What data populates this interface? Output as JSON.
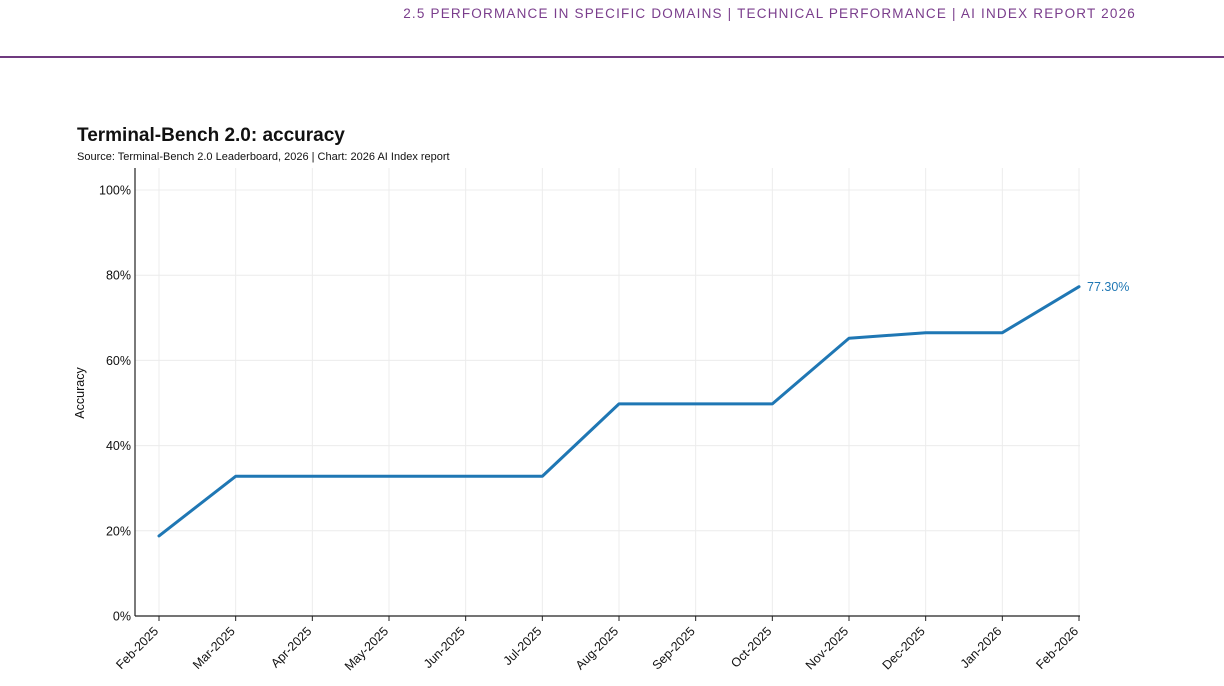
{
  "header": {
    "running_title": "2.5 PERFORMANCE IN SPECIFIC DOMAINS  |  TECHNICAL PERFORMANCE  |  AI INDEX REPORT 2026"
  },
  "colors": {
    "header_accent": "#7a3d8c",
    "series_line": "#1f77b4",
    "gridline": "#ececec",
    "axis": "#222222"
  },
  "chart_data": {
    "type": "line",
    "title": "Terminal-Bench 2.0: accuracy",
    "subtitle": "Source: Terminal-Bench 2.0 Leaderboard, 2026 | Chart: 2026 AI Index report",
    "xlabel": "",
    "ylabel": "Accuracy",
    "x": [
      "Feb-2025",
      "Mar-2025",
      "Apr-2025",
      "May-2025",
      "Jun-2025",
      "Jul-2025",
      "Aug-2025",
      "Sep-2025",
      "Oct-2025",
      "Nov-2025",
      "Dec-2025",
      "Jan-2026",
      "Feb-2026"
    ],
    "series": [
      {
        "values": [
          18.8,
          32.8,
          32.8,
          32.8,
          32.8,
          32.8,
          49.8,
          49.8,
          49.8,
          65.2,
          66.5,
          66.5,
          77.3
        ]
      }
    ],
    "ylim": [
      0,
      100
    ],
    "yticks": [
      "0%",
      "20%",
      "40%",
      "60%",
      "80%",
      "100%"
    ],
    "grid": true,
    "annotations": [
      {
        "x": "Feb-2026",
        "y": 77.3,
        "text": "77.30%"
      }
    ]
  }
}
